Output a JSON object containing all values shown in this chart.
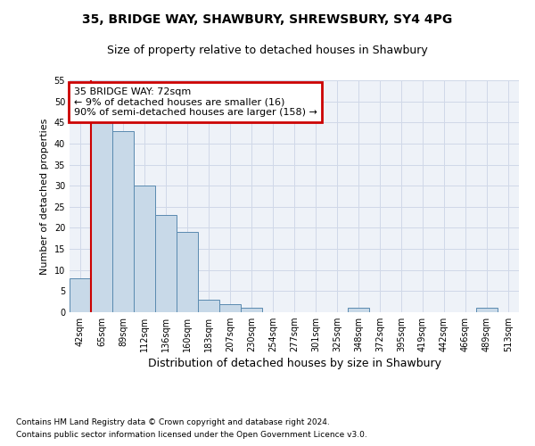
{
  "title1": "35, BRIDGE WAY, SHAWBURY, SHREWSBURY, SY4 4PG",
  "title2": "Size of property relative to detached houses in Shawbury",
  "xlabel": "Distribution of detached houses by size in Shawbury",
  "ylabel": "Number of detached properties",
  "categories": [
    "42sqm",
    "65sqm",
    "89sqm",
    "112sqm",
    "136sqm",
    "160sqm",
    "183sqm",
    "207sqm",
    "230sqm",
    "254sqm",
    "277sqm",
    "301sqm",
    "325sqm",
    "348sqm",
    "372sqm",
    "395sqm",
    "419sqm",
    "442sqm",
    "466sqm",
    "489sqm",
    "513sqm"
  ],
  "values": [
    8,
    45,
    43,
    30,
    23,
    19,
    3,
    2,
    1,
    0,
    0,
    0,
    0,
    1,
    0,
    0,
    0,
    0,
    0,
    1,
    0
  ],
  "bar_color": "#c8d9e8",
  "bar_edge_color": "#5a8ab0",
  "grid_color": "#d0d8e8",
  "background_color": "#eef2f8",
  "annotation_box_text": "35 BRIDGE WAY: 72sqm\n← 9% of detached houses are smaller (16)\n90% of semi-detached houses are larger (158) →",
  "annotation_box_color": "#cc0000",
  "vline_x": 0.5,
  "vline_color": "#cc0000",
  "ylim": [
    0,
    55
  ],
  "yticks": [
    0,
    5,
    10,
    15,
    20,
    25,
    30,
    35,
    40,
    45,
    50,
    55
  ],
  "footnote1": "Contains HM Land Registry data © Crown copyright and database right 2024.",
  "footnote2": "Contains public sector information licensed under the Open Government Licence v3.0.",
  "title1_fontsize": 10,
  "title2_fontsize": 9,
  "xlabel_fontsize": 9,
  "ylabel_fontsize": 8,
  "tick_fontsize": 7,
  "annot_fontsize": 8,
  "footnote_fontsize": 6.5
}
